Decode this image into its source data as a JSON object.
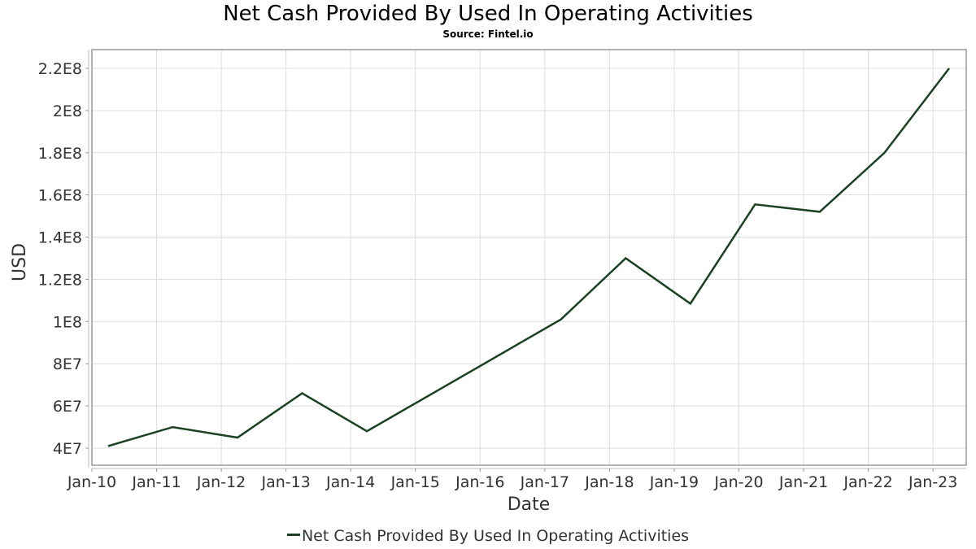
{
  "header": {
    "title": "Net Cash Provided By Used In Operating Activities",
    "subtitle": "Source: Fintel.io"
  },
  "axes": {
    "xlabel": "Date",
    "ylabel": "USD"
  },
  "legend": {
    "label": "Net Cash Provided By Used In Operating Activities",
    "color": "#1a4220"
  },
  "chart_data": {
    "type": "line",
    "title": "Net Cash Provided By Used In Operating Activities",
    "subtitle": "Source: Fintel.io",
    "xlabel": "Date",
    "ylabel": "USD",
    "x_ticks": [
      "Jan-10",
      "Jan-11",
      "Jan-12",
      "Jan-13",
      "Jan-14",
      "Jan-15",
      "Jan-16",
      "Jan-17",
      "Jan-18",
      "Jan-19",
      "Jan-20",
      "Jan-21",
      "Jan-22",
      "Jan-23"
    ],
    "y_ticks": [
      "4E7",
      "6E7",
      "8E7",
      "1E8",
      "1.2E8",
      "1.4E8",
      "1.6E8",
      "1.8E8",
      "2E8",
      "2.2E8"
    ],
    "ylim": [
      32000000,
      228000000
    ],
    "grid": true,
    "legend_position": "bottom",
    "series": [
      {
        "name": "Net Cash Provided By Used In Operating Activities",
        "color": "#1a4220",
        "x": [
          "2010-04",
          "2011-04",
          "2012-04",
          "2013-04",
          "2014-04",
          "2017-04",
          "2018-04",
          "2019-04",
          "2020-04",
          "2021-04",
          "2022-04",
          "2023-04"
        ],
        "values": [
          41000000,
          50000000,
          45000000,
          66000000,
          48000000,
          101000000,
          130000000,
          108500000,
          155500000,
          152000000,
          180000000,
          220000000
        ]
      }
    ]
  }
}
